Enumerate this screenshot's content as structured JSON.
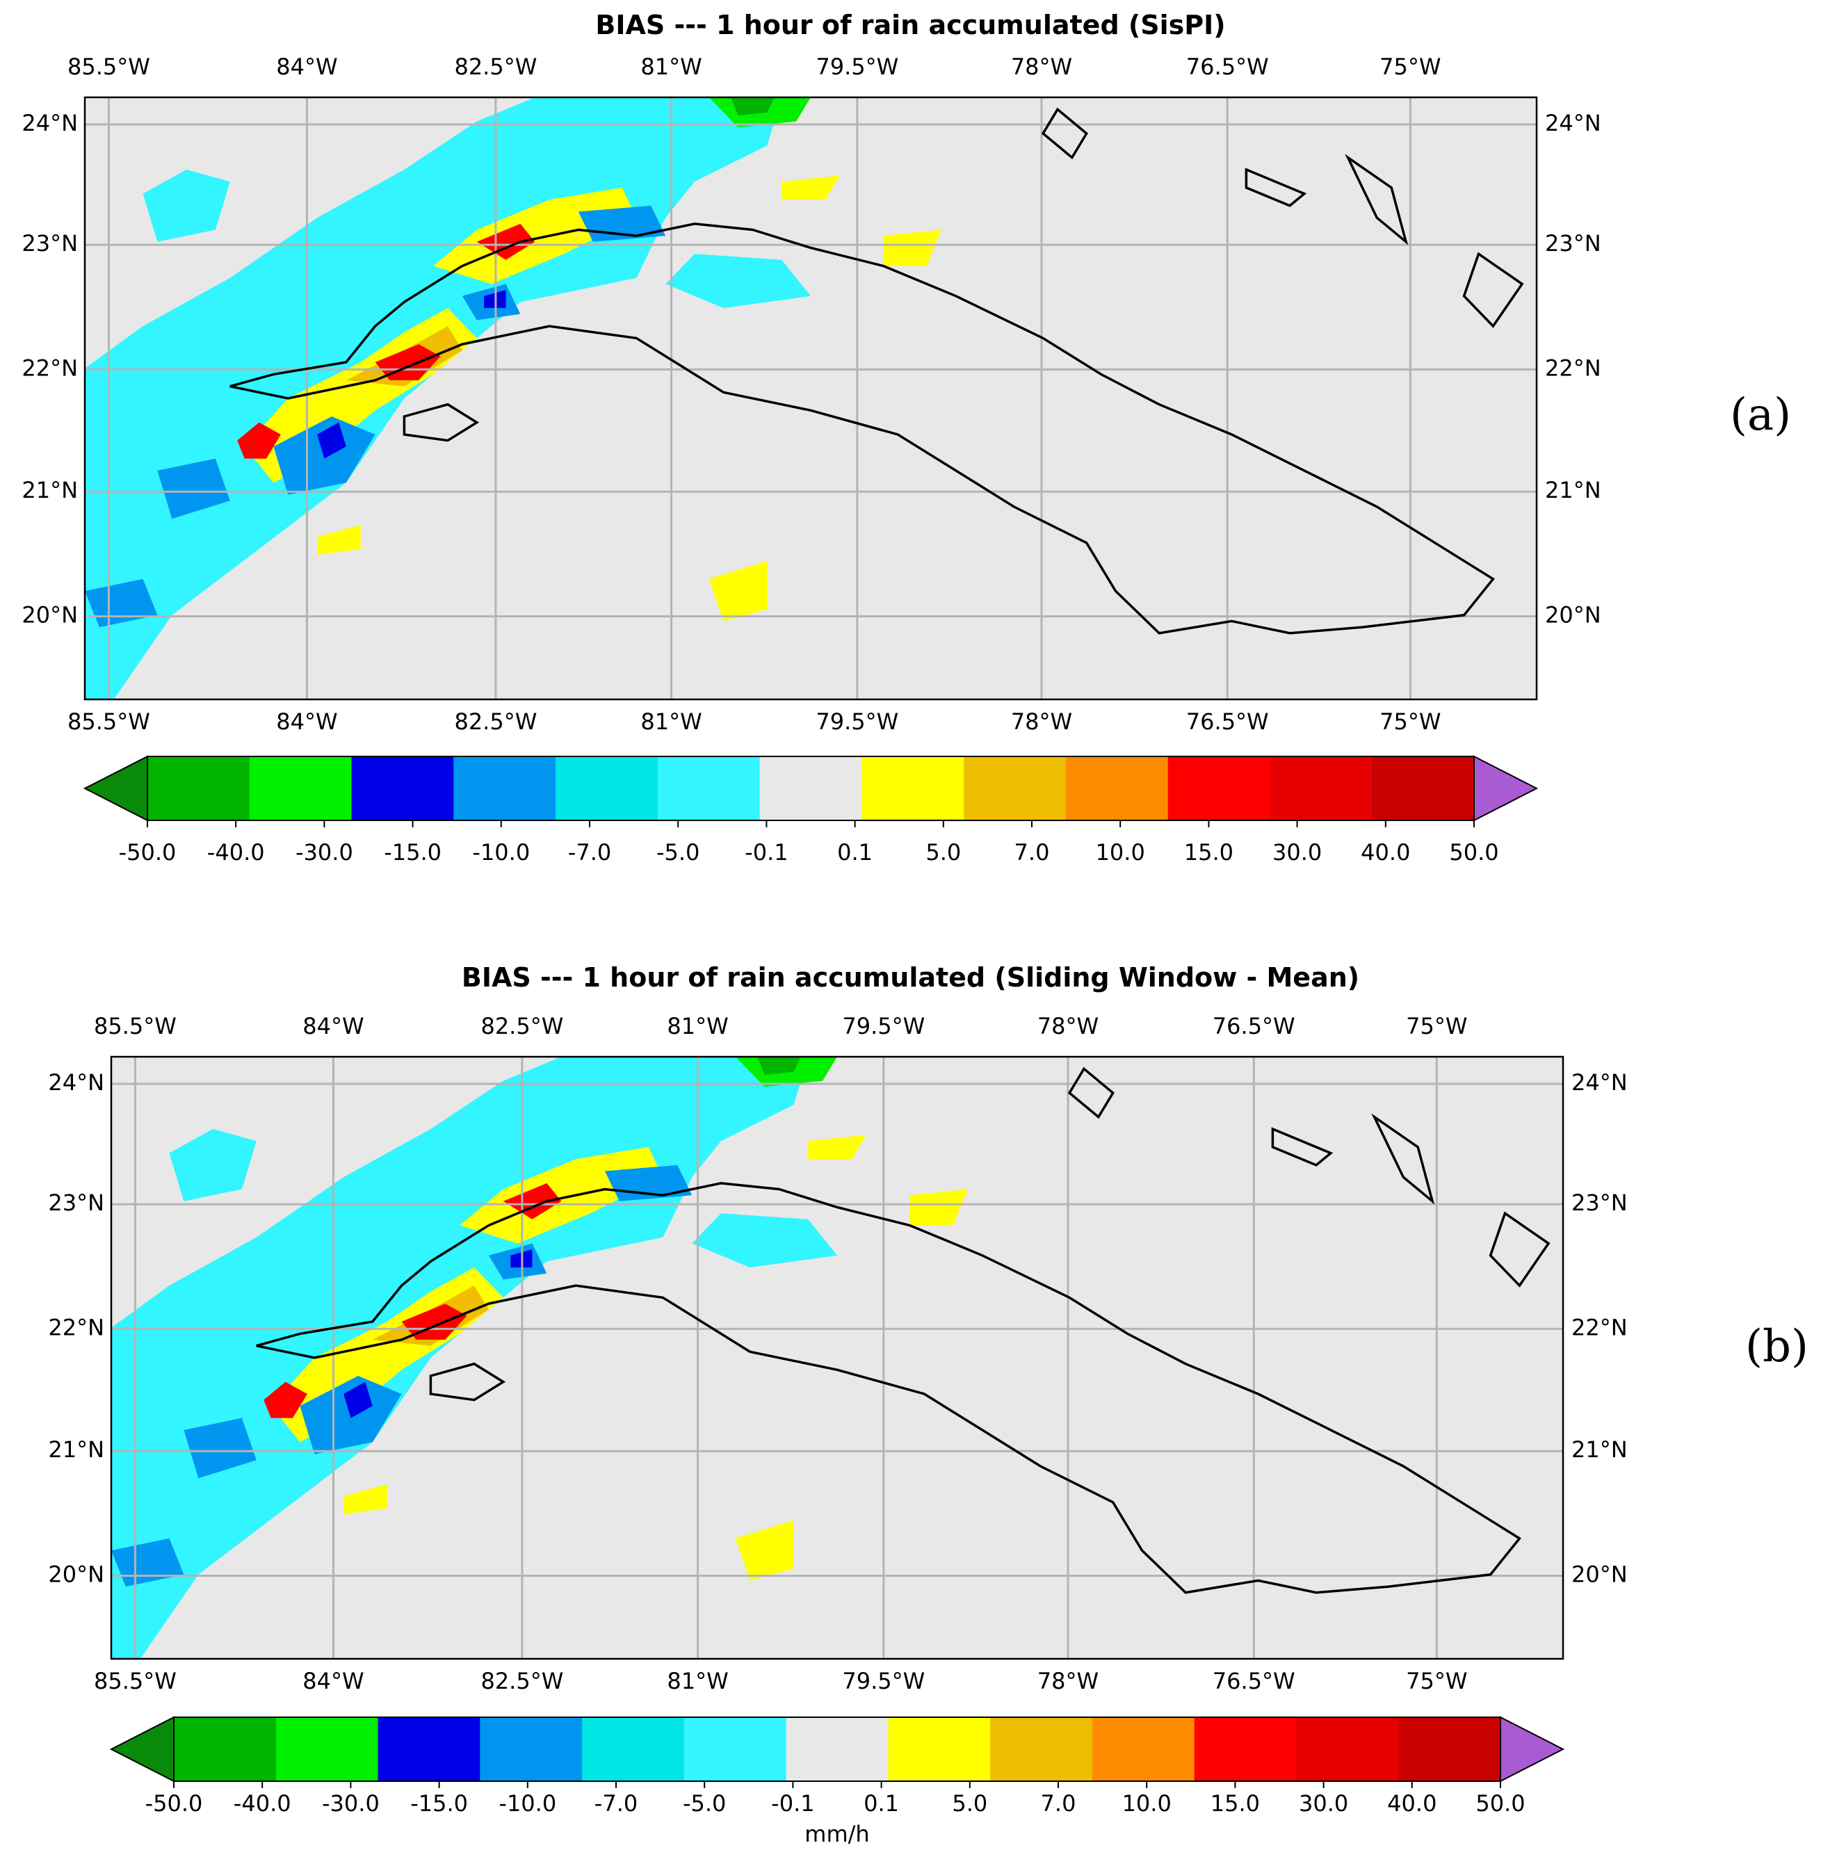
{
  "figure": {
    "panels": [
      {
        "id": "a",
        "label": "(a)",
        "title": "BIAS --- 1 hour of rain accumulated (SisPI)",
        "lon_ticks_top": [
          "85.5°W",
          "84°W",
          "82.5°W",
          "81°W",
          "79.5°W",
          "78°W",
          "76.5°W",
          "75°W"
        ],
        "lon_ticks_bottom": [
          "85.5°W",
          "84°W",
          "82.5°W",
          "81°W",
          "79.5°W",
          "78°W",
          "76.5°W",
          "75°W"
        ],
        "lat_ticks_left": [
          "24°N",
          "23°N",
          "22°N",
          "21°N",
          "20°N"
        ],
        "lat_ticks_right": [
          "24°N",
          "23°N",
          "22°N",
          "21°N",
          "20°N"
        ],
        "colorbar_units": ""
      },
      {
        "id": "b",
        "label": "(b)",
        "title": "BIAS --- 1 hour of rain accumulated (Sliding Window - Mean)",
        "lon_ticks_top": [
          "85.5°W",
          "84°W",
          "82.5°W",
          "81°W",
          "79.5°W",
          "78°W",
          "76.5°W",
          "75°W"
        ],
        "lon_ticks_bottom": [
          "85.5°W",
          "84°W",
          "82.5°W",
          "81°W",
          "79.5°W",
          "78°W",
          "76.5°W",
          "75°W"
        ],
        "lat_ticks_left": [
          "24°N",
          "23°N",
          "22°N",
          "21°N",
          "20°N"
        ],
        "lat_ticks_right": [
          "24°N",
          "23°N",
          "22°N",
          "21°N",
          "20°N"
        ],
        "colorbar_units": "mm/h"
      }
    ],
    "colorbar": {
      "ticks": [
        "-50.0",
        "-40.0",
        "-30.0",
        "-15.0",
        "-10.0",
        "-7.0",
        "-5.0",
        "-0.1",
        "0.1",
        "5.0",
        "7.0",
        "10.0",
        "15.0",
        "30.0",
        "40.0",
        "50.0"
      ],
      "colors_low_extend": "#0a8a0a",
      "colors": [
        "#00b400",
        "#00f000",
        "#0000e6",
        "#0096f0",
        "#00e6e6",
        "#32f5ff",
        "#e8e8e8",
        "#ffff00",
        "#f0be00",
        "#ff8c00",
        "#ff0000",
        "#e60000",
        "#c80000"
      ],
      "colors_high_extend": "#aa5ad2"
    },
    "map_background": "#e8e8e8",
    "coastline_color": "#000000"
  }
}
